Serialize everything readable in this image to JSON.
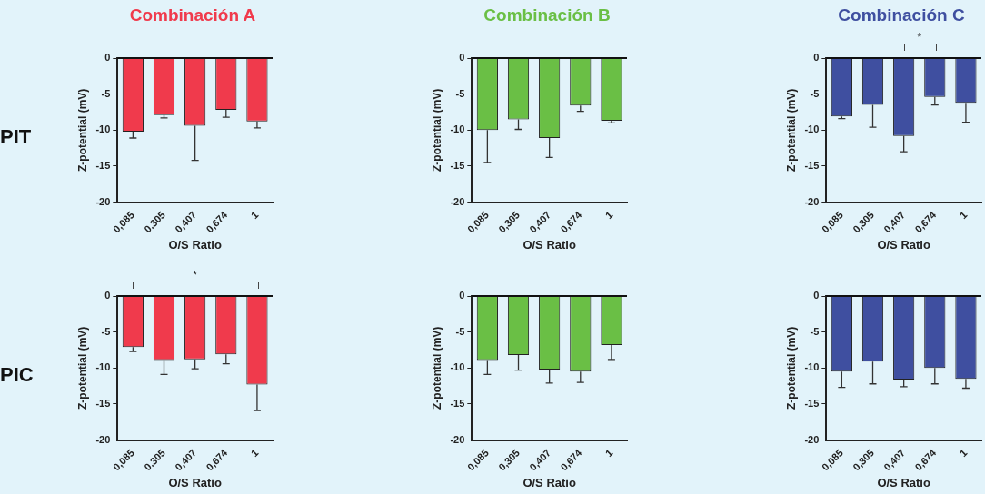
{
  "chart_data": [
    {
      "type": "bar",
      "title": "Combinación A",
      "subtitle": "PIT",
      "xlabel": "O/S Ratio",
      "ylabel": "Z-potential (mV)",
      "categories": [
        "0,085",
        "0,305",
        "0,407",
        "0,674",
        "1"
      ],
      "color": "#f03a4c",
      "values": [
        -10.2,
        -7.9,
        -9.4,
        -7.2,
        -8.8
      ],
      "errors": [
        [
          -11.1,
          -10.2
        ],
        [
          -8.3,
          -7.9
        ],
        [
          -14.2,
          -9.4
        ],
        [
          -8.2,
          -7.2
        ],
        [
          -9.7,
          -8.8
        ]
      ],
      "ylim": [
        -20,
        0
      ],
      "yticks": [
        -20,
        -15,
        -10,
        -5,
        0
      ]
    },
    {
      "type": "bar",
      "title": "Combinación B",
      "xlabel": "O/S Ratio",
      "ylabel": "Z-potential (mV)",
      "categories": [
        "0,085",
        "0,305",
        "0,407",
        "0,674",
        "1"
      ],
      "color": "#6abf45",
      "values": [
        -10.0,
        -8.5,
        -11.1,
        -6.6,
        -8.7
      ],
      "errors": [
        [
          -14.5,
          -10.0
        ],
        [
          -9.9,
          -8.5
        ],
        [
          -13.8,
          -11.1
        ],
        [
          -7.4,
          -6.6
        ],
        [
          -9.0,
          -8.7
        ]
      ],
      "ylim": [
        -20,
        0
      ],
      "yticks": [
        -20,
        -15,
        -10,
        -5,
        0
      ]
    },
    {
      "type": "bar",
      "title": "Combinación C",
      "xlabel": "O/S Ratio",
      "ylabel": "Z-potential (mV)",
      "categories": [
        "0,085",
        "0,305",
        "0,407",
        "0,674",
        "1"
      ],
      "color": "#3f4fa0",
      "values": [
        -8.1,
        -6.5,
        -10.8,
        -5.4,
        -6.2
      ],
      "errors": [
        [
          -8.4,
          -8.1
        ],
        [
          -9.6,
          -6.5
        ],
        [
          -13.0,
          -10.8
        ],
        [
          -6.5,
          -5.4
        ],
        [
          -8.9,
          -6.2
        ]
      ],
      "ylim": [
        -20,
        0
      ],
      "yticks": [
        -20,
        -15,
        -10,
        -5,
        0
      ],
      "annotations": [
        "*"
      ]
    },
    {
      "type": "bar",
      "subtitle": "PIC",
      "xlabel": "O/S Ratio",
      "ylabel": "Z-potential (mV)",
      "categories": [
        "0,085",
        "0,305",
        "0,407",
        "0,674",
        "1"
      ],
      "color": "#f03a4c",
      "values": [
        -7.1,
        -8.9,
        -8.8,
        -8.1,
        -12.3
      ],
      "errors": [
        [
          -7.7,
          -7.1
        ],
        [
          -10.9,
          -8.9
        ],
        [
          -10.1,
          -8.8
        ],
        [
          -9.4,
          -8.1
        ],
        [
          -15.9,
          -12.3
        ]
      ],
      "ylim": [
        -20,
        0
      ],
      "yticks": [
        -20,
        -15,
        -10,
        -5,
        0
      ],
      "annotations": [
        "*"
      ]
    },
    {
      "type": "bar",
      "xlabel": "O/S Ratio",
      "ylabel": "Z-potential (mV)",
      "categories": [
        "0,085",
        "0,305",
        "0,407",
        "0,674",
        "1"
      ],
      "color": "#6abf45",
      "values": [
        -8.9,
        -8.2,
        -10.2,
        -10.5,
        -6.8
      ],
      "errors": [
        [
          -10.9,
          -8.9
        ],
        [
          -10.3,
          -8.2
        ],
        [
          -12.1,
          -10.2
        ],
        [
          -12.0,
          -10.5
        ],
        [
          -8.8,
          -6.8
        ]
      ],
      "ylim": [
        -20,
        0
      ],
      "yticks": [
        -20,
        -15,
        -10,
        -5,
        0
      ]
    },
    {
      "type": "bar",
      "xlabel": "O/S Ratio",
      "ylabel": "Z-potential (mV)",
      "categories": [
        "0,085",
        "0,305",
        "0,407",
        "0,674",
        "1"
      ],
      "color": "#3f4fa0",
      "values": [
        -10.5,
        -9.1,
        -11.6,
        -10.0,
        -11.5
      ],
      "errors": [
        [
          -12.7,
          -10.5
        ],
        [
          -12.2,
          -9.1
        ],
        [
          -12.6,
          -11.6
        ],
        [
          -12.2,
          -10.0
        ],
        [
          -12.8,
          -11.5
        ]
      ],
      "ylim": [
        -20,
        0
      ],
      "yticks": [
        -20,
        -15,
        -10,
        -5,
        0
      ]
    }
  ]
}
